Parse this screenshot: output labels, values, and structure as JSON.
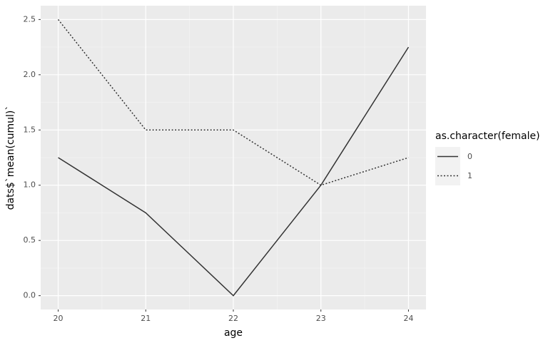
{
  "chart_data": {
    "type": "line",
    "x_label": "age",
    "y_label": "dats$`mean(cumul)`",
    "x": [
      20,
      21,
      22,
      23,
      24
    ],
    "series": [
      {
        "name": "0",
        "color": "#333333",
        "linestyle": "solid",
        "values": [
          1.25,
          0.75,
          0,
          1,
          2.25
        ]
      },
      {
        "name": "1",
        "color": "#333333",
        "linestyle": "dotted",
        "values": [
          2.5,
          1.5,
          1.5,
          1,
          1.25
        ]
      }
    ],
    "xlim": [
      19.8,
      24.2
    ],
    "xticks": [
      20,
      21,
      22,
      23,
      24
    ],
    "ylim": [
      -0.125,
      2.625
    ],
    "yticks": [
      {
        "value": 0,
        "label": "0.0"
      },
      0.5,
      {
        "value": 1,
        "label": "1.0"
      },
      1.5,
      {
        "value": 2,
        "label": "2.0"
      },
      2.5
    ],
    "grid": true,
    "legend_title": "as.character(female)",
    "legend_position": "right"
  }
}
